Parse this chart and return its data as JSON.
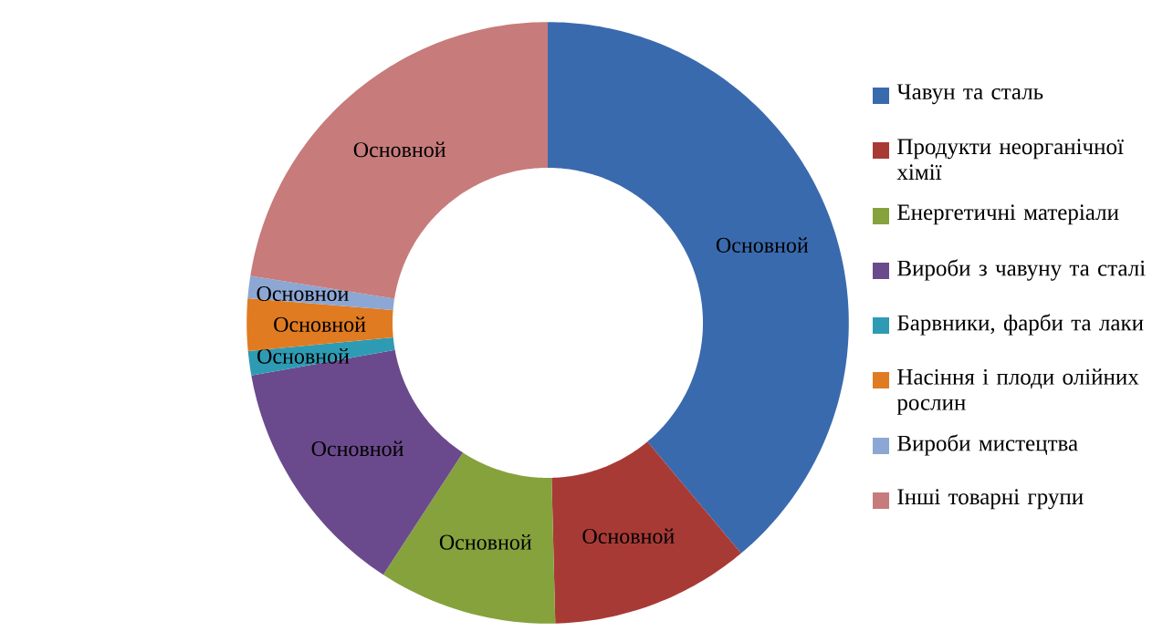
{
  "chart_data": {
    "type": "donut",
    "categories": [
      "Чавун та сталь",
      "Продукти неорганічної хімії",
      "Енергетичні матеріали",
      "Вироби з чавуну та сталі",
      "Барвники, фарби та лаки",
      "Насіння і плоди олійних рослин",
      "Вироби мистецтва",
      "Інші товарні групи"
    ],
    "values": [
      38.9,
      10.7,
      9.6,
      13.0,
      1.3,
      2.8,
      1.2,
      22.5
    ],
    "colors": [
      "#3a6aae",
      "#a83a36",
      "#86a23c",
      "#6a4a8c",
      "#2e9bb4",
      "#e07b22",
      "#8ca7d3",
      "#c77b7b"
    ],
    "value_labels": [
      "Основной",
      "Основной",
      "Основной",
      "Основной",
      "Основной",
      "Основной",
      "Основной",
      "Основной"
    ],
    "legend": "right"
  }
}
